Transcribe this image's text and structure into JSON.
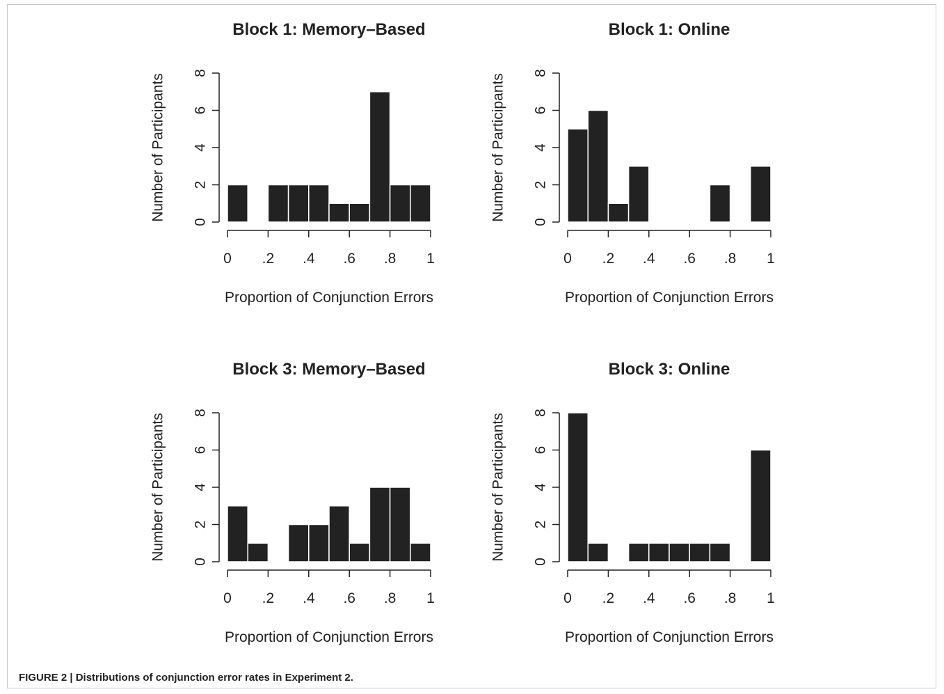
{
  "caption": "FIGURE 2 | Distributions of conjunction error rates in Experiment 2.",
  "bar_color": "#222222",
  "chart_data": [
    {
      "type": "bar",
      "title": "Block 1: Memory–Based",
      "xlabel": "Proportion of Conjunction Errors",
      "ylabel": "Number of Participants",
      "bin_edges": [
        0,
        0.1,
        0.2,
        0.3,
        0.4,
        0.5,
        0.6,
        0.7,
        0.8,
        0.9,
        1.0
      ],
      "values": [
        2,
        0,
        2,
        2,
        2,
        1,
        1,
        7,
        2,
        2
      ],
      "xlim": [
        0,
        1
      ],
      "ylim": [
        0,
        8
      ],
      "xticks": [
        0,
        0.2,
        0.4,
        0.6,
        0.8,
        1
      ],
      "xtick_labels": [
        "0",
        ".2",
        ".4",
        ".6",
        ".8",
        "1"
      ],
      "yticks": [
        0,
        2,
        4,
        6,
        8
      ],
      "ytick_labels": [
        "0",
        "2",
        "4",
        "6",
        "8"
      ]
    },
    {
      "type": "bar",
      "title": "Block 1: Online",
      "xlabel": "Proportion of Conjunction Errors",
      "ylabel": "Number of Participants",
      "bin_edges": [
        0,
        0.1,
        0.2,
        0.3,
        0.4,
        0.5,
        0.6,
        0.7,
        0.8,
        0.9,
        1.0
      ],
      "values": [
        5,
        6,
        1,
        3,
        0,
        0,
        0,
        2,
        0,
        3
      ],
      "xlim": [
        0,
        1
      ],
      "ylim": [
        0,
        8
      ],
      "xticks": [
        0,
        0.2,
        0.4,
        0.6,
        0.8,
        1
      ],
      "xtick_labels": [
        "0",
        ".2",
        ".4",
        ".6",
        ".8",
        "1"
      ],
      "yticks": [
        0,
        2,
        4,
        6,
        8
      ],
      "ytick_labels": [
        "0",
        "2",
        "4",
        "6",
        "8"
      ]
    },
    {
      "type": "bar",
      "title": "Block 3: Memory–Based",
      "xlabel": "Proportion of Conjunction Errors",
      "ylabel": "Number of Participants",
      "bin_edges": [
        0,
        0.1,
        0.2,
        0.3,
        0.4,
        0.5,
        0.6,
        0.7,
        0.8,
        0.9,
        1.0
      ],
      "values": [
        3,
        1,
        0,
        2,
        2,
        3,
        1,
        4,
        4,
        1
      ],
      "xlim": [
        0,
        1
      ],
      "ylim": [
        0,
        8
      ],
      "xticks": [
        0,
        0.2,
        0.4,
        0.6,
        0.8,
        1
      ],
      "xtick_labels": [
        "0",
        ".2",
        ".4",
        ".6",
        ".8",
        "1"
      ],
      "yticks": [
        0,
        2,
        4,
        6,
        8
      ],
      "ytick_labels": [
        "0",
        "2",
        "4",
        "6",
        "8"
      ]
    },
    {
      "type": "bar",
      "title": "Block 3: Online",
      "xlabel": "Proportion of Conjunction Errors",
      "ylabel": "Number of Participants",
      "bin_edges": [
        0,
        0.1,
        0.2,
        0.3,
        0.4,
        0.5,
        0.6,
        0.7,
        0.8,
        0.9,
        1.0
      ],
      "values": [
        8,
        1,
        0,
        1,
        1,
        1,
        1,
        1,
        0,
        6
      ],
      "xlim": [
        0,
        1
      ],
      "ylim": [
        0,
        8
      ],
      "xticks": [
        0,
        0.2,
        0.4,
        0.6,
        0.8,
        1
      ],
      "xtick_labels": [
        "0",
        ".2",
        ".4",
        ".6",
        ".8",
        "1"
      ],
      "yticks": [
        0,
        2,
        4,
        6,
        8
      ],
      "ytick_labels": [
        "0",
        "2",
        "4",
        "6",
        "8"
      ]
    }
  ]
}
